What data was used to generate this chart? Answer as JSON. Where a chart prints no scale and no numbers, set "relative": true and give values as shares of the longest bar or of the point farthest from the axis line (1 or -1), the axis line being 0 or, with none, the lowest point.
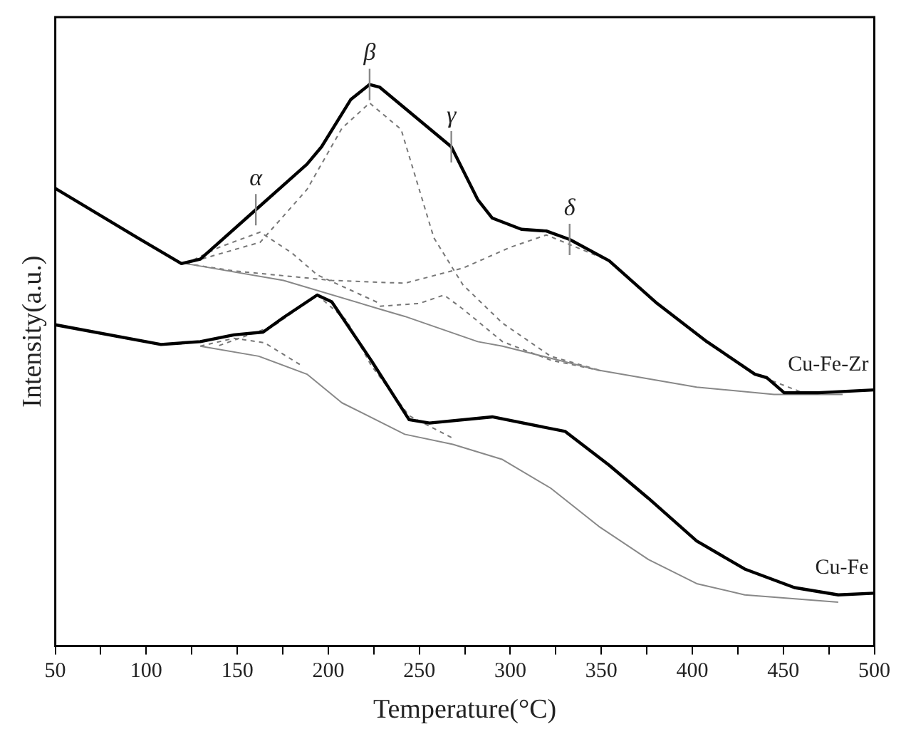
{
  "chart_data": {
    "type": "line",
    "relative": true,
    "xlabel": "Temperature(°C)",
    "ylabel": "Intensity(a.u.)",
    "xlim": [
      50,
      500
    ],
    "xticks": [
      50,
      {
        "value": 75,
        "label": null
      },
      100,
      {
        "value": 125,
        "label": null
      },
      150,
      {
        "value": 175,
        "label": null
      },
      200,
      {
        "value": 225,
        "label": null
      },
      250,
      {
        "value": 275,
        "label": null
      },
      300,
      {
        "value": 325,
        "label": null
      },
      350,
      {
        "value": 375,
        "label": null
      },
      400,
      {
        "value": 425,
        "label": null
      },
      450,
      {
        "value": 475,
        "label": null
      },
      500
    ],
    "grid": false,
    "legend": false,
    "marker": "none",
    "tick_labels": "x",
    "series": [
      {
        "name": "Cu-Fe-Zr",
        "color": "#000000",
        "line_style": "solid",
        "x": [
          50,
          95.2,
          119.3,
          129.7,
          160.2,
          188.3,
          196.3,
          212.3,
          222.7,
          228.3,
          267.6,
          282.1,
          290.1,
          306.1,
          319.8,
          332.6,
          354.3,
          380.7,
          408,
          434.4,
          440.9,
          450.5,
          468.9,
          500
        ],
        "values": [
          0.815,
          0.727,
          0.681,
          0.689,
          0.777,
          0.858,
          0.889,
          0.973,
          1,
          0.995,
          0.889,
          0.795,
          0.762,
          0.742,
          0.739,
          0.724,
          0.686,
          0.61,
          0.542,
          0.484,
          0.478,
          0.451,
          0.451,
          0.456
        ]
      },
      {
        "color": "#888888",
        "line_style": "solid",
        "x": [
          121.7,
          175.4,
          228.3,
          242,
          282.1,
          295.7,
          348.6,
          402.4,
          444.9,
          482.6
        ],
        "values": [
          0.681,
          0.651,
          0.6,
          0.587,
          0.542,
          0.534,
          0.491,
          0.461,
          0.448,
          0.448
        ]
      },
      {
        "color": "#777777",
        "line_style": "dashed",
        "x": [
          121.7,
          140,
          162.6,
          180,
          193.9,
          228.3
        ],
        "values": [
          0.681,
          0.71,
          0.737,
          0.7,
          0.661,
          0.61
        ]
      },
      {
        "color": "#777777",
        "line_style": "dashed",
        "x": [
          121.7,
          162.6,
          188.3,
          207.5,
          222.7,
          240,
          258,
          274,
          295.7,
          322.2,
          350
        ],
        "values": [
          0.681,
          0.719,
          0.813,
          0.922,
          0.967,
          0.92,
          0.727,
          0.643,
          0.575,
          0.516,
          0.49
        ]
      },
      {
        "color": "#777777",
        "line_style": "dashed",
        "x": [
          228.3,
          250,
          263.6,
          274,
          295.7,
          322.2,
          350
        ],
        "values": [
          0.605,
          0.61,
          0.625,
          0.6,
          0.542,
          0.509,
          0.49
        ]
      },
      {
        "color": "#777777",
        "line_style": "dashed",
        "x": [
          121.7,
          148,
          202,
          242,
          274,
          300,
          319.8,
          354.3,
          380.7,
          408,
          434.4,
          460
        ],
        "values": [
          0.681,
          0.668,
          0.651,
          0.646,
          0.673,
          0.71,
          0.732,
          0.686,
          0.61,
          0.542,
          0.484,
          0.452
        ]
      },
      {
        "name": "Cu-Fe",
        "color": "#000000",
        "line_style": "solid",
        "x": [
          50,
          108.1,
          129.7,
          148.2,
          164.2,
          175.4,
          193.9,
          201.9,
          223.5,
          244.4,
          255.6,
          290.1,
          330.2,
          354.3,
          375.9,
          402.4,
          428.8,
          456.1,
          480.2,
          500
        ],
        "values": [
          0.572,
          0.537,
          0.542,
          0.554,
          0.559,
          0.585,
          0.625,
          0.613,
          0.509,
          0.403,
          0.397,
          0.408,
          0.382,
          0.322,
          0.263,
          0.187,
          0.137,
          0.104,
          0.091,
          0.094
        ]
      },
      {
        "color": "#888888",
        "line_style": "solid",
        "x": [
          129.7,
          161.8,
          188.3,
          207.5,
          242,
          268.4,
          295.7,
          322.2,
          348.6,
          375.9,
          402.4,
          428.8,
          480.2
        ],
        "values": [
          0.534,
          0.516,
          0.484,
          0.433,
          0.377,
          0.359,
          0.332,
          0.281,
          0.213,
          0.154,
          0.111,
          0.091,
          0.078
        ]
      },
      {
        "color": "#777777",
        "line_style": "dashed",
        "x": [
          129.7,
          148.2,
          165,
          185
        ],
        "values": [
          0.534,
          0.548,
          0.54,
          0.5
        ]
      },
      {
        "color": "#777777",
        "line_style": "dashed",
        "x": [
          140,
          170,
          193.9,
          210,
          223.5,
          244.4,
          268.4
        ],
        "values": [
          0.535,
          0.57,
          0.625,
          0.58,
          0.5,
          0.41,
          0.37
        ]
      }
    ],
    "annotations": [
      {
        "text": "α",
        "x": 160.2,
        "y": 0.777
      },
      {
        "text": "β",
        "x": 222.7,
        "y": 1
      },
      {
        "text": "γ",
        "x": 267.6,
        "y": 0.889
      },
      {
        "text": "δ",
        "x": 332.6,
        "y": 0.724
      }
    ]
  }
}
